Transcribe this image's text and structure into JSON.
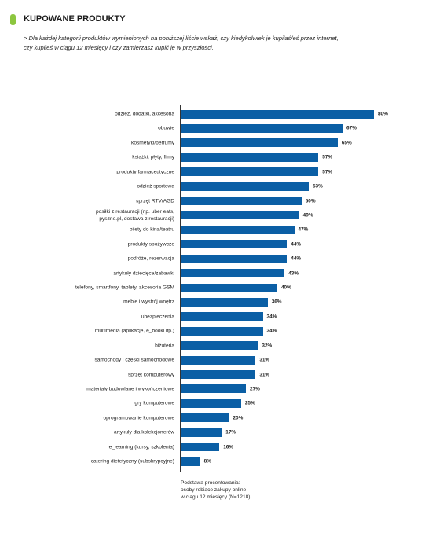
{
  "chart_data": {
    "type": "bar",
    "orientation": "horizontal",
    "title": "KUPOWANE PRODUKTY",
    "subtitle": "> Dla każdej kategorii produktów wymienionych na poniższej liście wskaż, czy kiedykolwiek je kupiłaś/eś przez internet,\n czy kupiłeś w ciągu 12 miesięcy i czy zamierzasz kupić je w przyszłości.",
    "categories": [
      "odzież, dodatki, akcesoria",
      "obuwie",
      "kosmetyki/perfumy",
      "książki, płyty, filmy",
      "produkty farmaceutyczne",
      "odzież sportowa",
      "sprzęt RTV/AGD",
      "posiłki z restauracji (np. uber eats,\npyszne.pl, dostawa z restauracji)",
      "bilety do kina/teatru",
      "produkty spożywcze",
      "podróże, rezerwacja",
      "artykuły dziecięce/zabawki",
      "telefony, smartfony, tablety, akcesoria GSM",
      "meble i wystrój wnętrz",
      "ubezpieczenia",
      "multimedia (aplikacje, e_booki itp.)",
      "biżuteria",
      "samochody i części samochodowe",
      "sprzęt komputerowy",
      "materiały budowlane i wykończeniowe",
      "gry komputerowe",
      "oprogramowanie komputerowe",
      "artykuły dla kolekcjonerów",
      "e_learning (kursy, szkolenia)",
      "catering dietetyczny (subskrypcyjne)"
    ],
    "values": [
      80,
      67,
      65,
      57,
      57,
      53,
      50,
      49,
      47,
      44,
      44,
      43,
      40,
      36,
      34,
      34,
      32,
      31,
      31,
      27,
      25,
      20,
      17,
      16,
      8
    ],
    "value_labels": [
      "80%",
      "67%",
      "65%",
      "57%",
      "57%",
      "53%",
      "50%",
      "49%",
      "47%",
      "44%",
      "44%",
      "43%",
      "40%",
      "36%",
      "34%",
      "34%",
      "32%",
      "31%",
      "31%",
      "27%",
      "25%",
      "20%",
      "17%",
      "16%",
      "8%"
    ],
    "color": "#0b5fa5",
    "note": "Podstawa procentowania:\nosoby robiące zakupy online\nw ciągu 12 miesięcy (N=1218)"
  }
}
